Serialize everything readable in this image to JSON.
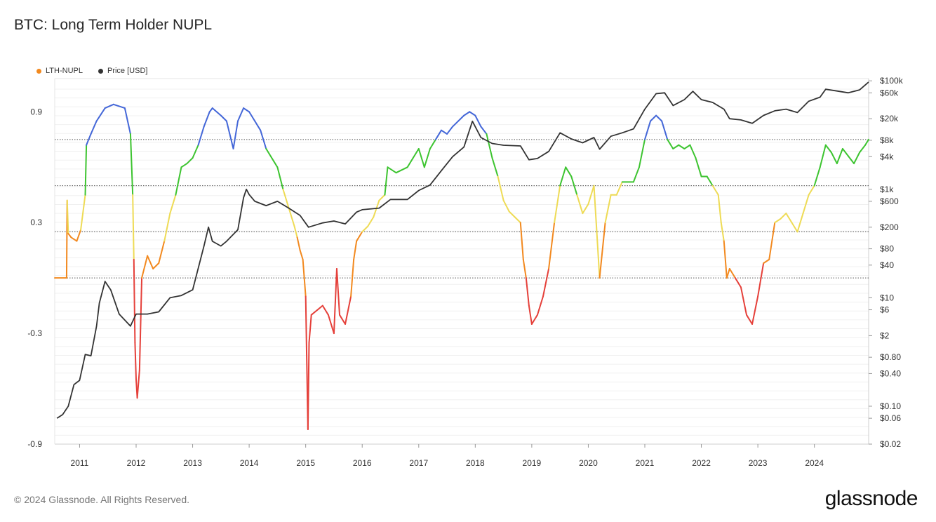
{
  "title": "BTC: Long Term Holder NUPL",
  "footer": "© 2024 Glassnode. All Rights Reserved.",
  "brand": "glassnode",
  "chart_data": {
    "type": "line",
    "title": "BTC: Long Term Holder NUPL",
    "legend": [
      {
        "name": "LTH-NUPL",
        "color": "#f2891f"
      },
      {
        "name": "Price [USD]",
        "color": "#333333"
      }
    ],
    "legend_position": "top-left",
    "x_ticks": [
      "2011",
      "2012",
      "2013",
      "2014",
      "2015",
      "2016",
      "2017",
      "2018",
      "2019",
      "2020",
      "2021",
      "2022",
      "2023",
      "2024"
    ],
    "x_range": [
      2010.56,
      2024.96
    ],
    "left_axis": {
      "ticks": [
        0.9,
        0.3,
        -0.3,
        -0.9
      ],
      "tick_labels": [
        "0.9",
        "0.3",
        "-0.3",
        "-0.9"
      ],
      "range": [
        -0.9,
        1.08
      ]
    },
    "right_axis": {
      "scale": "log",
      "tick_labels": [
        "$100k",
        "$60k",
        "$20k",
        "$8k",
        "$4k",
        "$1k",
        "$600",
        "$200",
        "$80",
        "$40",
        "$10",
        "$6",
        "$2",
        "$0.80",
        "$0.40",
        "$0.10",
        "$0.06",
        "$0.02"
      ],
      "tick_values": [
        100000,
        60000,
        20000,
        8000,
        4000,
        1000,
        600,
        200,
        80,
        40,
        10,
        6,
        2,
        0.8,
        0.4,
        0.1,
        0.06,
        0.02
      ],
      "range": [
        0.02,
        110000
      ]
    },
    "zone_lines": [
      0.75,
      0.5,
      0.25,
      0.0
    ],
    "zone_colors": {
      "capitulation": "#e5403a",
      "hope_fear": "#f2891f",
      "optimism_anxiety": "#eedb55",
      "belief_denial": "#3dc430",
      "euphoria_greed": "#4467d8"
    },
    "series": [
      {
        "name": "LTH-NUPL",
        "color": "#f2891f",
        "points": [
          [
            2010.56,
            0.0
          ],
          [
            2010.77,
            0.0
          ],
          [
            2010.78,
            0.42
          ],
          [
            2010.8,
            0.24
          ],
          [
            2010.85,
            0.22
          ],
          [
            2010.95,
            0.2
          ],
          [
            2011.02,
            0.26
          ],
          [
            2011.1,
            0.45
          ],
          [
            2011.12,
            0.72
          ],
          [
            2011.2,
            0.78
          ],
          [
            2011.3,
            0.85
          ],
          [
            2011.45,
            0.92
          ],
          [
            2011.6,
            0.94
          ],
          [
            2011.8,
            0.92
          ],
          [
            2011.9,
            0.78
          ],
          [
            2011.94,
            0.45
          ],
          [
            2011.96,
            0.1
          ],
          [
            2011.98,
            -0.35
          ],
          [
            2012.0,
            -0.55
          ],
          [
            2012.02,
            -0.65
          ],
          [
            2012.06,
            -0.5
          ],
          [
            2012.1,
            0.0
          ],
          [
            2012.2,
            0.12
          ],
          [
            2012.3,
            0.05
          ],
          [
            2012.4,
            0.08
          ],
          [
            2012.5,
            0.2
          ],
          [
            2012.6,
            0.35
          ],
          [
            2012.7,
            0.45
          ],
          [
            2012.8,
            0.6
          ],
          [
            2012.9,
            0.62
          ],
          [
            2013.0,
            0.65
          ],
          [
            2013.1,
            0.72
          ],
          [
            2013.2,
            0.82
          ],
          [
            2013.3,
            0.9
          ],
          [
            2013.35,
            0.92
          ],
          [
            2013.5,
            0.88
          ],
          [
            2013.6,
            0.85
          ],
          [
            2013.72,
            0.7
          ],
          [
            2013.8,
            0.85
          ],
          [
            2013.9,
            0.92
          ],
          [
            2014.0,
            0.9
          ],
          [
            2014.1,
            0.85
          ],
          [
            2014.2,
            0.8
          ],
          [
            2014.3,
            0.7
          ],
          [
            2014.5,
            0.6
          ],
          [
            2014.6,
            0.48
          ],
          [
            2014.8,
            0.28
          ],
          [
            2014.85,
            0.22
          ],
          [
            2014.9,
            0.15
          ],
          [
            2014.95,
            0.1
          ],
          [
            2015.0,
            -0.1
          ],
          [
            2015.04,
            -0.82
          ],
          [
            2015.06,
            -0.35
          ],
          [
            2015.1,
            -0.2
          ],
          [
            2015.3,
            -0.15
          ],
          [
            2015.4,
            -0.2
          ],
          [
            2015.5,
            -0.3
          ],
          [
            2015.55,
            0.05
          ],
          [
            2015.6,
            -0.2
          ],
          [
            2015.7,
            -0.25
          ],
          [
            2015.8,
            -0.1
          ],
          [
            2015.85,
            0.1
          ],
          [
            2015.9,
            0.2
          ],
          [
            2016.0,
            0.25
          ],
          [
            2016.1,
            0.28
          ],
          [
            2016.2,
            0.33
          ],
          [
            2016.3,
            0.42
          ],
          [
            2016.4,
            0.45
          ],
          [
            2016.45,
            0.6
          ],
          [
            2016.6,
            0.57
          ],
          [
            2016.8,
            0.6
          ],
          [
            2016.9,
            0.65
          ],
          [
            2017.0,
            0.7
          ],
          [
            2017.1,
            0.6
          ],
          [
            2017.2,
            0.7
          ],
          [
            2017.3,
            0.75
          ],
          [
            2017.4,
            0.8
          ],
          [
            2017.5,
            0.78
          ],
          [
            2017.6,
            0.82
          ],
          [
            2017.8,
            0.88
          ],
          [
            2017.9,
            0.9
          ],
          [
            2018.0,
            0.88
          ],
          [
            2018.1,
            0.82
          ],
          [
            2018.2,
            0.78
          ],
          [
            2018.3,
            0.65
          ],
          [
            2018.4,
            0.55
          ],
          [
            2018.5,
            0.42
          ],
          [
            2018.6,
            0.36
          ],
          [
            2018.7,
            0.33
          ],
          [
            2018.8,
            0.3
          ],
          [
            2018.85,
            0.1
          ],
          [
            2018.9,
            0.0
          ],
          [
            2018.95,
            -0.15
          ],
          [
            2019.0,
            -0.25
          ],
          [
            2019.1,
            -0.2
          ],
          [
            2019.2,
            -0.1
          ],
          [
            2019.3,
            0.05
          ],
          [
            2019.4,
            0.3
          ],
          [
            2019.5,
            0.5
          ],
          [
            2019.6,
            0.6
          ],
          [
            2019.7,
            0.55
          ],
          [
            2019.8,
            0.45
          ],
          [
            2019.9,
            0.35
          ],
          [
            2020.0,
            0.4
          ],
          [
            2020.1,
            0.5
          ],
          [
            2020.2,
            0.0
          ],
          [
            2020.3,
            0.3
          ],
          [
            2020.4,
            0.45
          ],
          [
            2020.5,
            0.45
          ],
          [
            2020.6,
            0.52
          ],
          [
            2020.8,
            0.52
          ],
          [
            2020.9,
            0.6
          ],
          [
            2021.0,
            0.75
          ],
          [
            2021.1,
            0.85
          ],
          [
            2021.2,
            0.88
          ],
          [
            2021.3,
            0.85
          ],
          [
            2021.4,
            0.75
          ],
          [
            2021.5,
            0.7
          ],
          [
            2021.6,
            0.72
          ],
          [
            2021.7,
            0.7
          ],
          [
            2021.8,
            0.72
          ],
          [
            2021.9,
            0.65
          ],
          [
            2022.0,
            0.55
          ],
          [
            2022.1,
            0.55
          ],
          [
            2022.2,
            0.5
          ],
          [
            2022.3,
            0.45
          ],
          [
            2022.35,
            0.3
          ],
          [
            2022.4,
            0.2
          ],
          [
            2022.45,
            0.0
          ],
          [
            2022.5,
            0.05
          ],
          [
            2022.6,
            0.0
          ],
          [
            2022.7,
            -0.05
          ],
          [
            2022.8,
            -0.2
          ],
          [
            2022.9,
            -0.25
          ],
          [
            2023.0,
            -0.1
          ],
          [
            2023.1,
            0.08
          ],
          [
            2023.2,
            0.1
          ],
          [
            2023.3,
            0.3
          ],
          [
            2023.4,
            0.32
          ],
          [
            2023.5,
            0.35
          ],
          [
            2023.6,
            0.3
          ],
          [
            2023.7,
            0.25
          ],
          [
            2023.8,
            0.35
          ],
          [
            2023.9,
            0.45
          ],
          [
            2024.0,
            0.5
          ],
          [
            2024.1,
            0.6
          ],
          [
            2024.2,
            0.72
          ],
          [
            2024.3,
            0.68
          ],
          [
            2024.4,
            0.62
          ],
          [
            2024.5,
            0.7
          ],
          [
            2024.6,
            0.66
          ],
          [
            2024.7,
            0.62
          ],
          [
            2024.8,
            0.68
          ],
          [
            2024.9,
            0.72
          ],
          [
            2024.96,
            0.75
          ]
        ]
      },
      {
        "name": "Price [USD]",
        "color": "#333333",
        "points": [
          [
            2010.6,
            0.06
          ],
          [
            2010.7,
            0.07
          ],
          [
            2010.8,
            0.1
          ],
          [
            2010.9,
            0.25
          ],
          [
            2011.0,
            0.3
          ],
          [
            2011.1,
            0.9
          ],
          [
            2011.2,
            0.85
          ],
          [
            2011.3,
            3
          ],
          [
            2011.35,
            8
          ],
          [
            2011.45,
            20
          ],
          [
            2011.55,
            14
          ],
          [
            2011.7,
            5
          ],
          [
            2011.9,
            3
          ],
          [
            2012.0,
            5
          ],
          [
            2012.2,
            5
          ],
          [
            2012.4,
            5.5
          ],
          [
            2012.6,
            10
          ],
          [
            2012.8,
            11
          ],
          [
            2013.0,
            14
          ],
          [
            2013.2,
            90
          ],
          [
            2013.28,
            200
          ],
          [
            2013.35,
            110
          ],
          [
            2013.5,
            90
          ],
          [
            2013.6,
            110
          ],
          [
            2013.8,
            180
          ],
          [
            2013.9,
            700
          ],
          [
            2013.95,
            1000
          ],
          [
            2014.0,
            800
          ],
          [
            2014.1,
            600
          ],
          [
            2014.3,
            500
          ],
          [
            2014.5,
            600
          ],
          [
            2014.7,
            450
          ],
          [
            2014.9,
            330
          ],
          [
            2015.05,
            200
          ],
          [
            2015.3,
            240
          ],
          [
            2015.5,
            260
          ],
          [
            2015.7,
            230
          ],
          [
            2015.9,
            380
          ],
          [
            2016.0,
            420
          ],
          [
            2016.3,
            450
          ],
          [
            2016.5,
            650
          ],
          [
            2016.8,
            650
          ],
          [
            2017.0,
            950
          ],
          [
            2017.2,
            1200
          ],
          [
            2017.4,
            2200
          ],
          [
            2017.6,
            4000
          ],
          [
            2017.8,
            6000
          ],
          [
            2017.95,
            18000
          ],
          [
            2018.1,
            9000
          ],
          [
            2018.3,
            7000
          ],
          [
            2018.5,
            6500
          ],
          [
            2018.8,
            6300
          ],
          [
            2018.95,
            3500
          ],
          [
            2019.1,
            3700
          ],
          [
            2019.3,
            5000
          ],
          [
            2019.5,
            11000
          ],
          [
            2019.7,
            8500
          ],
          [
            2019.9,
            7200
          ],
          [
            2020.1,
            9000
          ],
          [
            2020.2,
            5500
          ],
          [
            2020.4,
            9500
          ],
          [
            2020.6,
            11000
          ],
          [
            2020.8,
            13000
          ],
          [
            2021.0,
            30000
          ],
          [
            2021.2,
            58000
          ],
          [
            2021.35,
            60000
          ],
          [
            2021.5,
            35000
          ],
          [
            2021.7,
            45000
          ],
          [
            2021.85,
            64000
          ],
          [
            2022.0,
            45000
          ],
          [
            2022.2,
            40000
          ],
          [
            2022.4,
            30000
          ],
          [
            2022.5,
            20000
          ],
          [
            2022.7,
            19000
          ],
          [
            2022.9,
            16500
          ],
          [
            2023.1,
            23000
          ],
          [
            2023.3,
            28000
          ],
          [
            2023.5,
            30000
          ],
          [
            2023.7,
            26000
          ],
          [
            2023.9,
            42000
          ],
          [
            2024.1,
            50000
          ],
          [
            2024.2,
            70000
          ],
          [
            2024.4,
            65000
          ],
          [
            2024.6,
            60000
          ],
          [
            2024.8,
            68000
          ],
          [
            2024.96,
            95000
          ]
        ]
      }
    ]
  }
}
